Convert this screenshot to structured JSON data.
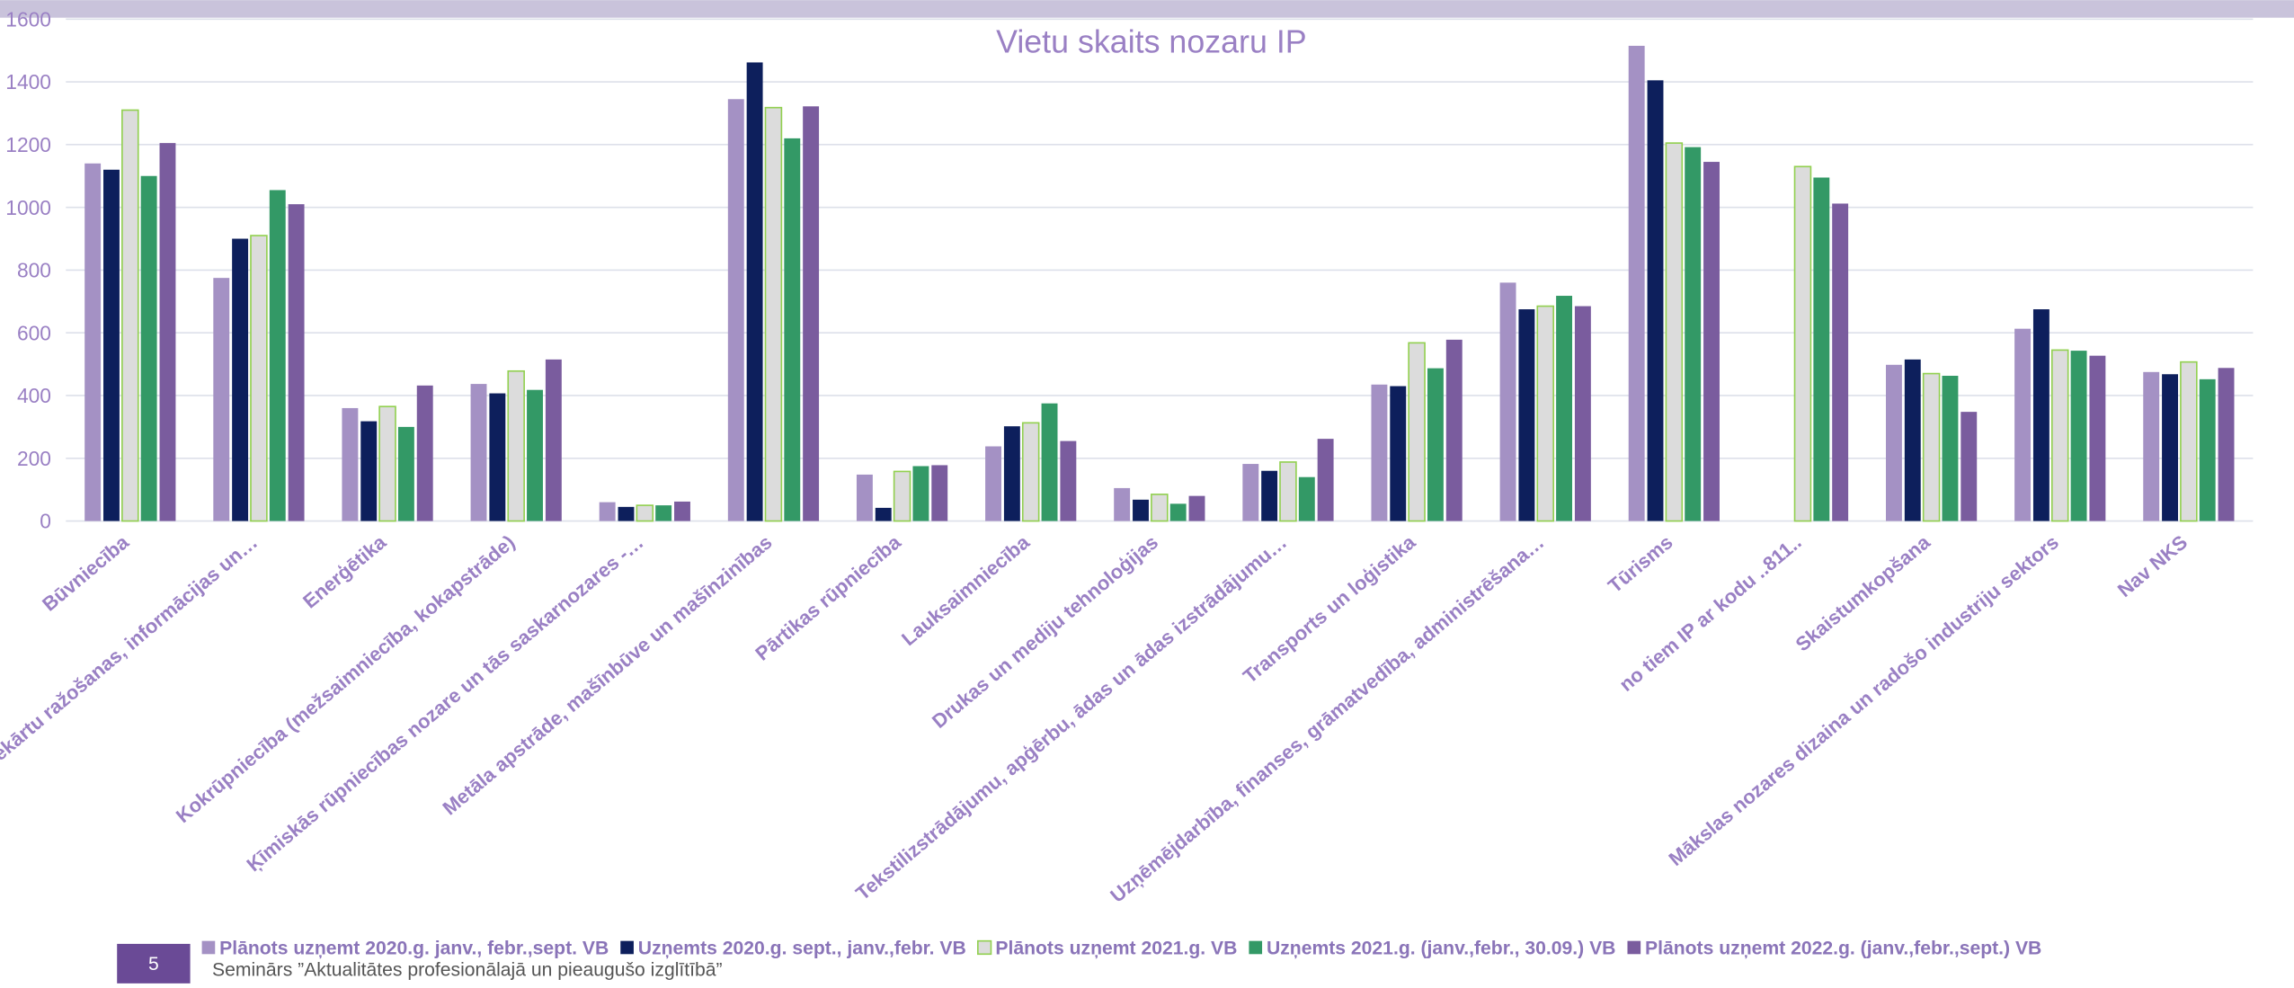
{
  "chart_data": {
    "type": "bar",
    "title": "Vietu skaits nozaru IP",
    "footer": {
      "page_number": "5",
      "text": "Seminārs ”Aktualitātes profesionālajā un pieaugušo izglītībā”"
    },
    "categories": [
      "Būvniecība",
      "Elektronisko un optisko iekārtu ražošanas, informācijas un…",
      "Enerģētika",
      "Kokrūpniecība (mežsaimniecība, kokapstrāde)",
      "Ķīmiskās rūpniecības nozare un tās saskarnozares -…",
      "Metāla apstrāde, mašīnbūve un mašīnzinības",
      "Pārtikas rūpniecība",
      "Lauksaimniecība",
      "Drukas un mediju tehnoloģijas",
      "Tekstilizstrādājumu, apģērbu, ādas un ādas izstrādājumu…",
      "Transports un loģistika",
      "Uzņēmējdarbība, finanses, grāmatvedība, administrēšana…",
      "Tūrisms",
      "no tiem IP ar kodu ..811..",
      "Skaistumkopšana",
      "Mākslas nozares dizaina un radošo industriju sektors",
      "Nav NKS"
    ],
    "series": [
      {
        "name": "Plānots uzņemt 2020.g. janv., febr.,sept. VB",
        "color": "#a491c4",
        "values": [
          1140,
          775,
          360,
          437,
          60,
          1345,
          148,
          238,
          105,
          182,
          435,
          760,
          1515,
          null,
          498,
          613,
          475
        ]
      },
      {
        "name": "Uzņemts 2020.g. sept., janv.,febr. VB",
        "color": "#0d1f5c",
        "values": [
          1120,
          900,
          318,
          407,
          45,
          1462,
          42,
          302,
          68,
          160,
          430,
          675,
          1405,
          null,
          515,
          675,
          468
        ]
      },
      {
        "name": "Plānots uzņemt 2021.g. VB",
        "color": "#dcdcdc",
        "edgecolor": "#92d050",
        "values": [
          1310,
          910,
          365,
          478,
          50,
          1318,
          158,
          313,
          85,
          188,
          568,
          685,
          1205,
          1130,
          470,
          545,
          507
        ]
      },
      {
        "name": "Uzņemts 2021.g. (janv.,febr., 30.09.) VB",
        "color": "#339966",
        "values": [
          1100,
          1055,
          300,
          418,
          50,
          1220,
          175,
          375,
          55,
          140,
          487,
          718,
          1192,
          1095,
          463,
          543,
          452
        ]
      },
      {
        "name": "Plānots uzņemt 2022.g. (janv.,febr.,sept.) VB",
        "color": "#7a5c9e",
        "values": [
          1205,
          1010,
          432,
          515,
          62,
          1322,
          178,
          255,
          80,
          262,
          578,
          685,
          1145,
          1012,
          348,
          527,
          488
        ]
      }
    ],
    "ylim": [
      0,
      1600
    ],
    "yticks": [
      0,
      200,
      400,
      600,
      800,
      1000,
      1200,
      1400,
      1600
    ],
    "grid": true,
    "legend": "bottom"
  }
}
